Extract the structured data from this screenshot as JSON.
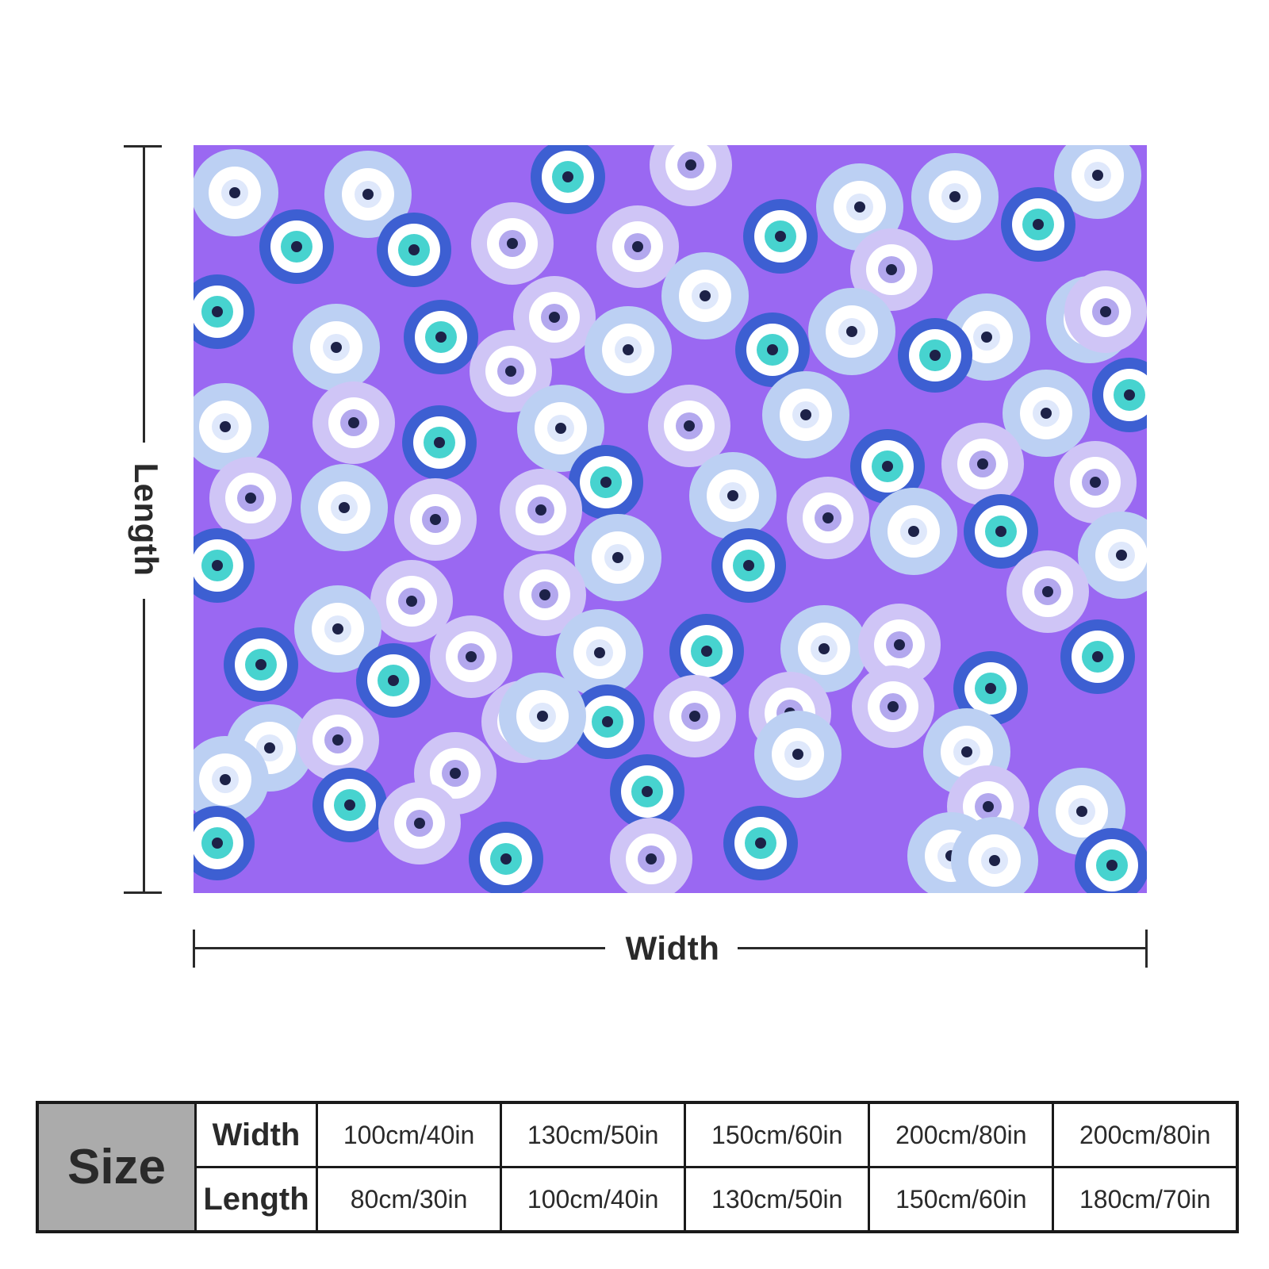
{
  "dimension_labels": {
    "length": "Length",
    "width": "Width"
  },
  "colors": {
    "blanket_background": "#9a68f2",
    "eye_outer_light": "#bcd0f3",
    "eye_outer_lavender": "#cfc5f6",
    "eye_outer_blue": "#3d5fd2",
    "eye_iris_teal": "#47d3cf",
    "pupil": "#1d2248"
  },
  "pattern": {
    "motif": "evil-eye",
    "icon": "evil-eye-icon"
  },
  "size_table": {
    "header": "Size",
    "rows": [
      {
        "label": "Width",
        "values": [
          "100cm/40in",
          "130cm/50in",
          "150cm/60in",
          "200cm/80in",
          "200cm/80in"
        ]
      },
      {
        "label": "Length",
        "values": [
          "80cm/30in",
          "100cm/40in",
          "130cm/50in",
          "150cm/60in",
          "180cm/70in"
        ]
      }
    ]
  }
}
